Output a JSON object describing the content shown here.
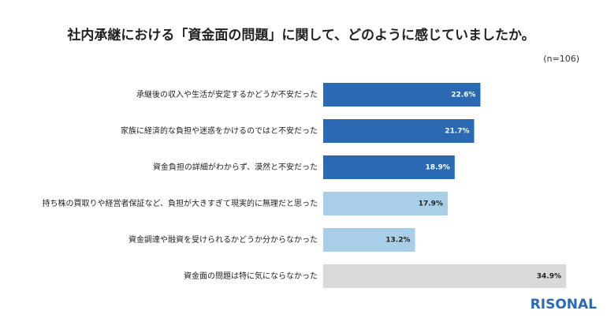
{
  "chart_data": {
    "type": "hbar",
    "title": "社内承継における「資金面の問題」に関して、どのように感じていましたか。",
    "subtitle": "(n=106)",
    "categories": [
      "承継後の収入や生活が安定するかどうか不安だった",
      "家族に経済的な負担や迷惑をかけるのではと不安だった",
      "資金負担の詳細がわからず、漠然と不安だった",
      "持ち株の買取りや経営者保証など、負担が大きすぎて現実的に無理だと思った",
      "資金調達や融資を受けられるかどうか分からなかった",
      "資金面の問題は特に気にならなかった"
    ],
    "values": [
      22.6,
      21.7,
      18.9,
      17.9,
      13.2,
      34.9
    ],
    "value_labels": [
      "22.6%",
      "21.7%",
      "18.9%",
      "17.9%",
      "13.2%",
      "34.9%"
    ],
    "colors": [
      "#2b6ab3",
      "#2b6ab3",
      "#2b6ab3",
      "#a9cfe8",
      "#a9cfe8",
      "#d9d9d9"
    ],
    "xlim": [
      0,
      40
    ],
    "logo": "RISONAL"
  }
}
